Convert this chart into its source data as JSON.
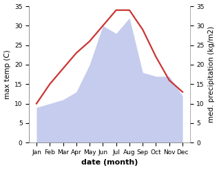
{
  "months": [
    "Jan",
    "Feb",
    "Mar",
    "Apr",
    "May",
    "Jun",
    "Jul",
    "Aug",
    "Sep",
    "Oct",
    "Nov",
    "Dec"
  ],
  "temperature": [
    10,
    15,
    19,
    23,
    26,
    30,
    34,
    34,
    29,
    22,
    16,
    13
  ],
  "precipitation": [
    9,
    10,
    11,
    13,
    20,
    30,
    28,
    32,
    18,
    17,
    17,
    12
  ],
  "temp_color": "#cc3333",
  "precip_color": "#c5ccee",
  "ylim_left": [
    0,
    35
  ],
  "ylim_right": [
    0,
    35
  ],
  "ylabel_left": "max temp (C)",
  "ylabel_right": "med. precipitation (kg/m2)",
  "xlabel": "date (month)",
  "bg_color": "#ffffff",
  "plot_bg_color": "#ffffff",
  "label_fontsize": 7.5,
  "tick_fontsize": 6.5,
  "xlabel_fontsize": 8,
  "linewidth": 1.6
}
